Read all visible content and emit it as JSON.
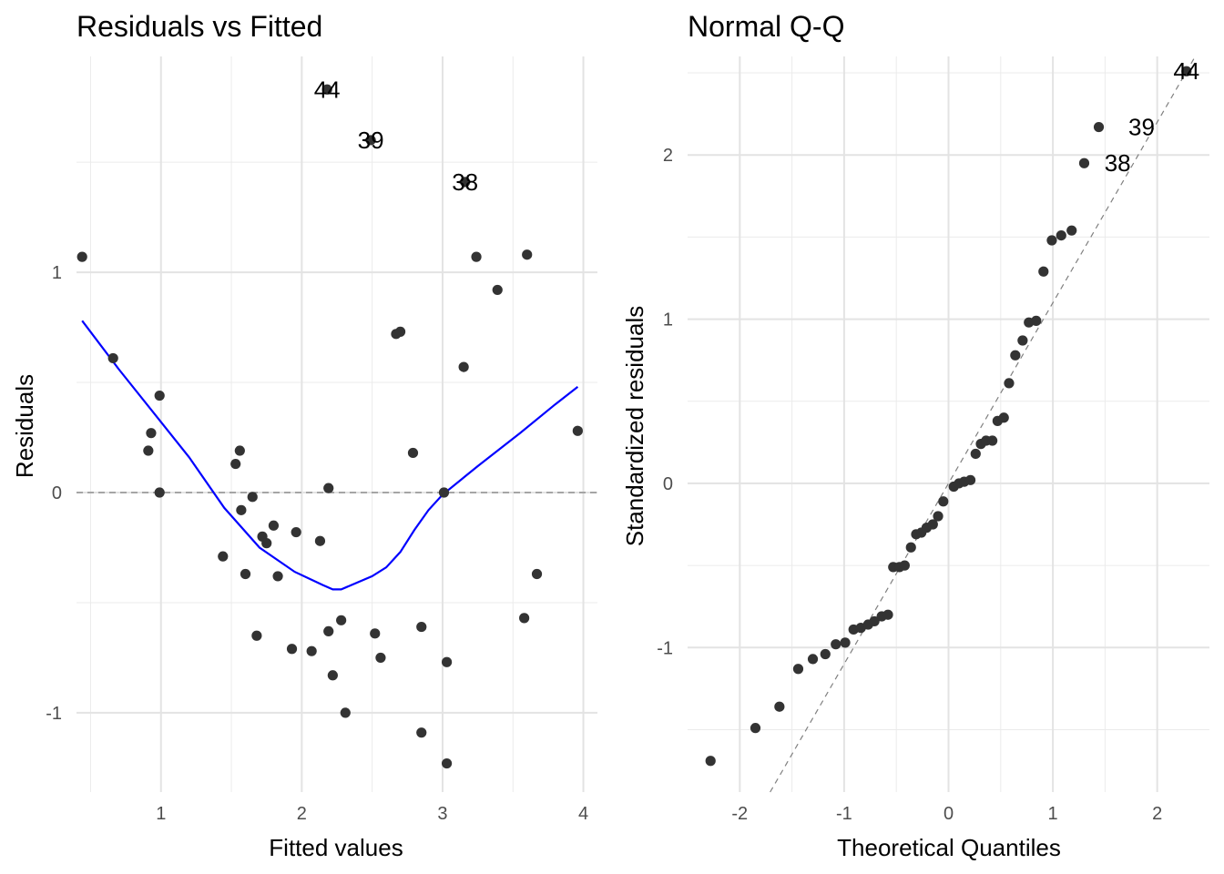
{
  "chart_data": [
    {
      "type": "scatter",
      "title": "Residuals vs Fitted",
      "xlabel": "Fitted values",
      "ylabel": "Residuals",
      "xlim": [
        0.4,
        4.1
      ],
      "ylim": [
        -1.36,
        1.98
      ],
      "xticks": [
        1,
        2,
        3,
        4
      ],
      "yticks": [
        -1,
        0,
        1
      ],
      "minor_xticks": [
        0.5,
        1.5,
        2.5,
        3.5
      ],
      "minor_yticks": [
        -0.5,
        0.5,
        1.5
      ],
      "grid": true,
      "reference_line": {
        "y": 0,
        "style": "dashed",
        "color": "#808080"
      },
      "point_color": "#333333",
      "smooth_color": "#0000ff",
      "points": [
        {
          "x": 0.44,
          "y": 1.07
        },
        {
          "x": 0.66,
          "y": 0.61
        },
        {
          "x": 0.91,
          "y": 0.19
        },
        {
          "x": 0.93,
          "y": 0.27
        },
        {
          "x": 0.99,
          "y": 0.44
        },
        {
          "x": 0.99,
          "y": 0.0
        },
        {
          "x": 1.44,
          "y": -0.29
        },
        {
          "x": 1.53,
          "y": 0.13
        },
        {
          "x": 1.56,
          "y": 0.19
        },
        {
          "x": 1.57,
          "y": -0.08
        },
        {
          "x": 1.6,
          "y": -0.37
        },
        {
          "x": 1.65,
          "y": -0.02
        },
        {
          "x": 1.68,
          "y": -0.65
        },
        {
          "x": 1.72,
          "y": -0.2
        },
        {
          "x": 1.75,
          "y": -0.23
        },
        {
          "x": 1.8,
          "y": -0.15
        },
        {
          "x": 1.83,
          "y": -0.38
        },
        {
          "x": 1.93,
          "y": -0.71
        },
        {
          "x": 1.96,
          "y": -0.18
        },
        {
          "x": 2.07,
          "y": -0.72
        },
        {
          "x": 2.13,
          "y": -0.22
        },
        {
          "x": 2.18,
          "y": 1.83
        },
        {
          "x": 2.19,
          "y": 0.02
        },
        {
          "x": 2.19,
          "y": -0.63
        },
        {
          "x": 2.22,
          "y": -0.83
        },
        {
          "x": 2.28,
          "y": -0.58
        },
        {
          "x": 2.31,
          "y": -1.0
        },
        {
          "x": 2.49,
          "y": 1.6
        },
        {
          "x": 2.52,
          "y": -0.64
        },
        {
          "x": 2.56,
          "y": -0.75
        },
        {
          "x": 2.67,
          "y": 0.72
        },
        {
          "x": 2.7,
          "y": 0.73
        },
        {
          "x": 2.79,
          "y": 0.18
        },
        {
          "x": 2.85,
          "y": -0.61
        },
        {
          "x": 2.85,
          "y": -1.09
        },
        {
          "x": 3.01,
          "y": 0.0
        },
        {
          "x": 3.03,
          "y": -0.77
        },
        {
          "x": 3.03,
          "y": -1.23
        },
        {
          "x": 3.15,
          "y": 0.57
        },
        {
          "x": 3.16,
          "y": 1.41
        },
        {
          "x": 3.24,
          "y": 1.07
        },
        {
          "x": 3.39,
          "y": 0.92
        },
        {
          "x": 3.58,
          "y": -0.57
        },
        {
          "x": 3.6,
          "y": 1.08
        },
        {
          "x": 3.67,
          "y": -0.37
        },
        {
          "x": 3.96,
          "y": 0.28
        }
      ],
      "labels": [
        {
          "x": 2.18,
          "y": 1.83,
          "text": "44"
        },
        {
          "x": 2.49,
          "y": 1.6,
          "text": "39"
        },
        {
          "x": 3.16,
          "y": 1.41,
          "text": "38"
        }
      ],
      "smooth": {
        "x": [
          0.44,
          0.7,
          1.0,
          1.2,
          1.45,
          1.7,
          1.95,
          2.15,
          2.22,
          2.28,
          2.5,
          2.6,
          2.7,
          2.8,
          2.9,
          3.0,
          3.25,
          3.55,
          3.8,
          3.96
        ],
        "y": [
          0.78,
          0.56,
          0.32,
          0.16,
          -0.07,
          -0.25,
          -0.36,
          -0.42,
          -0.44,
          -0.44,
          -0.38,
          -0.34,
          -0.27,
          -0.17,
          -0.08,
          -0.01,
          0.12,
          0.27,
          0.4,
          0.48
        ]
      }
    },
    {
      "type": "scatter",
      "title": "Normal Q-Q",
      "xlabel": "Theoretical Quantiles",
      "ylabel": "Standardized residuals",
      "xlim": [
        -2.5,
        2.5
      ],
      "ylim": [
        -1.88,
        2.6
      ],
      "xticks": [
        -2,
        -1,
        0,
        1,
        2
      ],
      "yticks": [
        -1,
        0,
        1,
        2
      ],
      "minor_xticks": [
        -1.5,
        -0.5,
        0.5,
        1.5
      ],
      "minor_yticks": [
        -1.5,
        -0.5,
        0.5,
        1.5,
        2.5
      ],
      "grid": true,
      "reference_line": {
        "intercept": 0.0,
        "slope": 1.1,
        "style": "dashed",
        "color": "#808080"
      },
      "point_color": "#333333",
      "points": [
        {
          "x": -2.28,
          "y": -1.69
        },
        {
          "x": -1.85,
          "y": -1.49
        },
        {
          "x": -1.62,
          "y": -1.36
        },
        {
          "x": -1.44,
          "y": -1.13
        },
        {
          "x": -1.3,
          "y": -1.07
        },
        {
          "x": -1.18,
          "y": -1.04
        },
        {
          "x": -1.08,
          "y": -0.98
        },
        {
          "x": -0.99,
          "y": -0.97
        },
        {
          "x": -0.91,
          "y": -0.89
        },
        {
          "x": -0.84,
          "y": -0.88
        },
        {
          "x": -0.77,
          "y": -0.86
        },
        {
          "x": -0.71,
          "y": -0.84
        },
        {
          "x": -0.64,
          "y": -0.81
        },
        {
          "x": -0.58,
          "y": -0.8
        },
        {
          "x": -0.53,
          "y": -0.51
        },
        {
          "x": -0.47,
          "y": -0.51
        },
        {
          "x": -0.42,
          "y": -0.5
        },
        {
          "x": -0.36,
          "y": -0.39
        },
        {
          "x": -0.31,
          "y": -0.31
        },
        {
          "x": -0.26,
          "y": -0.3
        },
        {
          "x": -0.21,
          "y": -0.27
        },
        {
          "x": -0.15,
          "y": -0.25
        },
        {
          "x": -0.1,
          "y": -0.2
        },
        {
          "x": -0.05,
          "y": -0.11
        },
        {
          "x": 0.05,
          "y": -0.02
        },
        {
          "x": 0.1,
          "y": 0.0
        },
        {
          "x": 0.15,
          "y": 0.01
        },
        {
          "x": 0.21,
          "y": 0.02
        },
        {
          "x": 0.26,
          "y": 0.18
        },
        {
          "x": 0.31,
          "y": 0.24
        },
        {
          "x": 0.36,
          "y": 0.26
        },
        {
          "x": 0.42,
          "y": 0.26
        },
        {
          "x": 0.47,
          "y": 0.38
        },
        {
          "x": 0.53,
          "y": 0.4
        },
        {
          "x": 0.58,
          "y": 0.61
        },
        {
          "x": 0.64,
          "y": 0.78
        },
        {
          "x": 0.71,
          "y": 0.87
        },
        {
          "x": 0.77,
          "y": 0.98
        },
        {
          "x": 0.84,
          "y": 0.99
        },
        {
          "x": 0.91,
          "y": 1.29
        },
        {
          "x": 0.99,
          "y": 1.48
        },
        {
          "x": 1.08,
          "y": 1.51
        },
        {
          "x": 1.18,
          "y": 1.54
        },
        {
          "x": 1.3,
          "y": 1.95
        },
        {
          "x": 1.44,
          "y": 2.17
        },
        {
          "x": 2.28,
          "y": 2.51
        }
      ],
      "labels": [
        {
          "x": 1.62,
          "y": 1.95,
          "text": "38"
        },
        {
          "x": 1.85,
          "y": 2.17,
          "text": "39"
        },
        {
          "x": 2.28,
          "y": 2.51,
          "text": "44"
        }
      ]
    }
  ]
}
